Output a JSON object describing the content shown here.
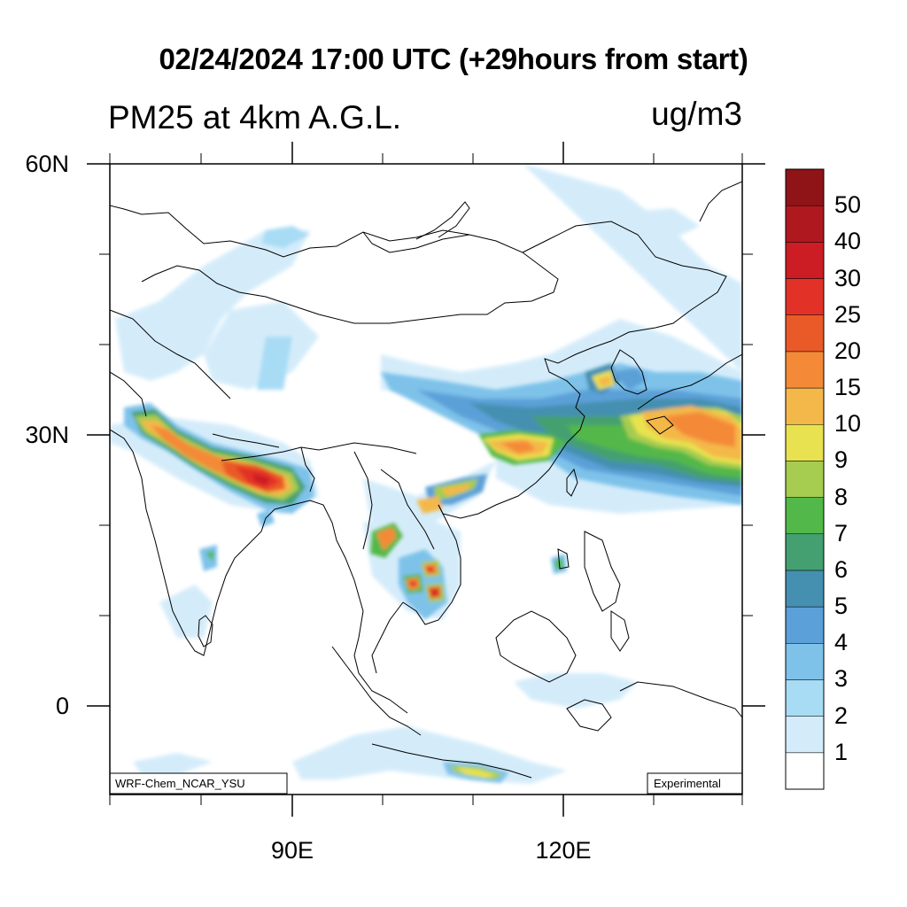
{
  "title": "02/24/2024 17:00 UTC (+29hours from start)",
  "subtitle": "PM25 at 4km A.G.L.",
  "units": "ug/m3",
  "lat_labels": [
    "60N",
    "30N",
    "0"
  ],
  "lon_labels": [
    "90E",
    "120E"
  ],
  "credit_left": "WRF-Chem_NCAR_YSU",
  "credit_right": "Experimental",
  "colorbar": {
    "levels": [
      "1",
      "2",
      "3",
      "4",
      "5",
      "6",
      "7",
      "8",
      "9",
      "10",
      "15",
      "20",
      "25",
      "30",
      "40",
      "50"
    ],
    "colors": [
      "#ffffff",
      "#d4ecfa",
      "#a8dcf5",
      "#7ec2ea",
      "#5ba0d8",
      "#4590b0",
      "#44a070",
      "#52b84a",
      "#a6cc50",
      "#e8e250",
      "#f4b84a",
      "#f48a38",
      "#ea5a28",
      "#e23228",
      "#cc1c24",
      "#b01820",
      "#8e1418"
    ]
  }
}
